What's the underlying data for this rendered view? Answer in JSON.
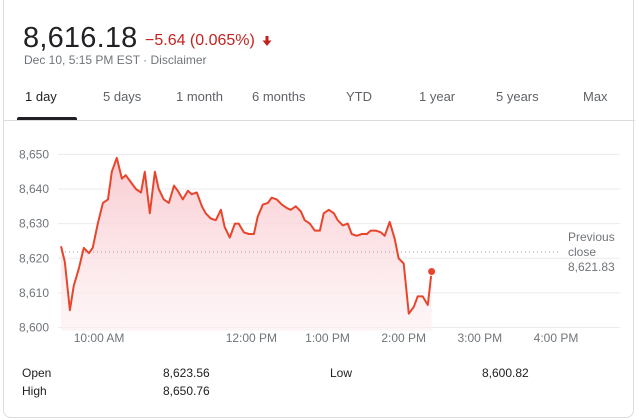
{
  "quote": {
    "price": "8,616.18",
    "change": "−5.64 (0.065%)",
    "timestamp": "Dec 10, 5:15 PM EST",
    "separator": " · ",
    "disclaimer": "Disclaimer"
  },
  "colors": {
    "negative": "#c5221f",
    "line": "#e8452c",
    "fill_top": "#f9c9cf",
    "text_muted": "#70757a"
  },
  "tabs": [
    {
      "label": "1 day",
      "active": true
    },
    {
      "label": "5 days",
      "active": false
    },
    {
      "label": "1 month",
      "active": false
    },
    {
      "label": "6 months",
      "active": false
    },
    {
      "label": "YTD",
      "active": false
    },
    {
      "label": "1 year",
      "active": false
    },
    {
      "label": "5 years",
      "active": false
    },
    {
      "label": "Max",
      "active": false
    }
  ],
  "chart_data": {
    "type": "area",
    "x_unit": "minutes after 9:30 AM",
    "ylim": [
      8599,
      8653
    ],
    "y_ticks": [
      8600,
      8610,
      8620,
      8630,
      8640,
      8650
    ],
    "y_tick_labels": [
      "8,600",
      "8,610",
      "8,620",
      "8,630",
      "8,640",
      "8,650"
    ],
    "x_ticks": [
      {
        "label": "10:00 AM",
        "minute": 30
      },
      {
        "label": "12:00 PM",
        "minute": 150
      },
      {
        "label": "1:00 PM",
        "minute": 210
      },
      {
        "label": "2:00 PM",
        "minute": 270
      },
      {
        "label": "3:00 PM",
        "minute": 330
      },
      {
        "label": "4:00 PM",
        "minute": 390
      }
    ],
    "previous_close": 8621.83,
    "previous_close_label": [
      "Previous",
      "close",
      "8,621.83"
    ],
    "series": [
      {
        "values": [
          [
            0,
            8623.5
          ],
          [
            3,
            8619
          ],
          [
            7,
            8605
          ],
          [
            10,
            8612
          ],
          [
            14,
            8617
          ],
          [
            18,
            8623
          ],
          [
            22,
            8621.5
          ],
          [
            25,
            8623
          ],
          [
            29,
            8630
          ],
          [
            33,
            8636
          ],
          [
            37,
            8637
          ],
          [
            40,
            8645
          ],
          [
            44,
            8649
          ],
          [
            48,
            8643
          ],
          [
            51,
            8644
          ],
          [
            55,
            8642
          ],
          [
            59,
            8640
          ],
          [
            63,
            8639
          ],
          [
            66,
            8645
          ],
          [
            70,
            8633
          ],
          [
            74,
            8645
          ],
          [
            77,
            8640
          ],
          [
            81,
            8637
          ],
          [
            85,
            8636
          ],
          [
            89,
            8641
          ],
          [
            92,
            8639.5
          ],
          [
            96,
            8637
          ],
          [
            100,
            8639.5
          ],
          [
            103,
            8638.5
          ],
          [
            107,
            8639
          ],
          [
            111,
            8635
          ],
          [
            114,
            8633
          ],
          [
            118,
            8631.5
          ],
          [
            122,
            8631
          ],
          [
            126,
            8634
          ],
          [
            129,
            8629
          ],
          [
            133,
            8626
          ],
          [
            137,
            8630
          ],
          [
            140,
            8630
          ],
          [
            144,
            8627.5
          ],
          [
            148,
            8627
          ],
          [
            152,
            8627
          ],
          [
            155,
            8632
          ],
          [
            159,
            8635.5
          ],
          [
            163,
            8636
          ],
          [
            166,
            8637.5
          ],
          [
            170,
            8637
          ],
          [
            174,
            8635.5
          ],
          [
            178,
            8634.5
          ],
          [
            181,
            8634
          ],
          [
            185,
            8635
          ],
          [
            189,
            8633.5
          ],
          [
            192,
            8631
          ],
          [
            196,
            8630
          ],
          [
            200,
            8628
          ],
          [
            204,
            8628
          ],
          [
            207,
            8633
          ],
          [
            211,
            8634
          ],
          [
            215,
            8633
          ],
          [
            218,
            8631
          ],
          [
            222,
            8629.5
          ],
          [
            226,
            8630
          ],
          [
            229,
            8627
          ],
          [
            233,
            8626.5
          ],
          [
            237,
            8627
          ],
          [
            241,
            8627
          ],
          [
            244,
            8628
          ],
          [
            248,
            8628
          ],
          [
            252,
            8627.5
          ],
          [
            255,
            8626.5
          ],
          [
            259,
            8630.5
          ],
          [
            263,
            8625.5
          ],
          [
            266,
            8620
          ],
          [
            270,
            8618.5
          ],
          [
            274,
            8604
          ],
          [
            278,
            8606
          ],
          [
            281,
            8609
          ],
          [
            285,
            8609
          ],
          [
            289,
            8606.5
          ],
          [
            292,
            8616.18
          ]
        ]
      }
    ]
  },
  "stats": [
    {
      "label": "Open",
      "value": "8,623.56"
    },
    {
      "label": "High",
      "value": "8,650.76"
    },
    {
      "label": "Low",
      "value": "8,600.82"
    }
  ]
}
